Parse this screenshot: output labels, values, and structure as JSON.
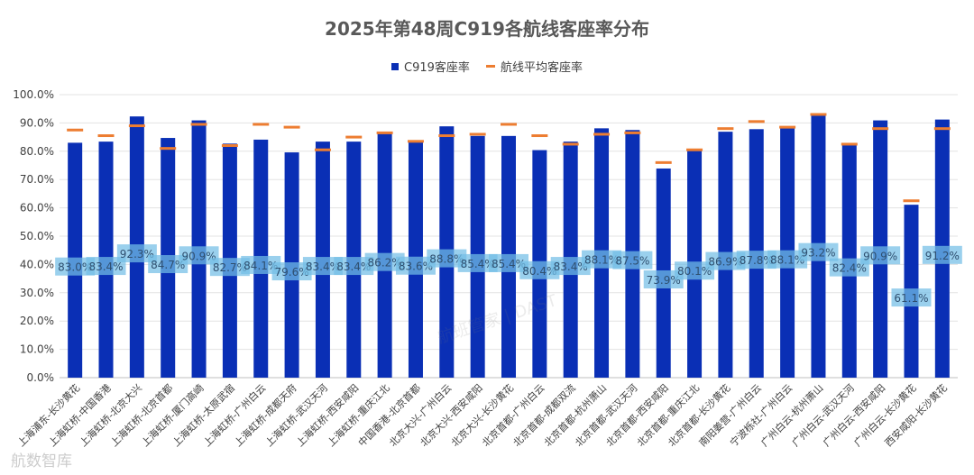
{
  "chart_data": {
    "type": "bar",
    "title": "2025年第48周C919各航线客座率分布",
    "categories": [
      "上海浦东-长沙黄花",
      "上海虹桥-中国香港",
      "上海虹桥-北京大兴",
      "上海虹桥-北京首都",
      "上海虹桥-厦门高崎",
      "上海虹桥-太原武宿",
      "上海虹桥-广州白云",
      "上海虹桥-成都天府",
      "上海虹桥-武汉天河",
      "上海虹桥-西安咸阳",
      "上海虹桥-重庆江北",
      "中国香港-北京首都",
      "北京大兴-广州白云",
      "北京大兴-西安咸阳",
      "北京大兴-长沙黄花",
      "北京首都-广州白云",
      "北京首都-成都双流",
      "北京首都-杭州萧山",
      "北京首都-武汉天河",
      "北京首都-西安咸阳",
      "北京首都-重庆江北",
      "北京首都-长沙黄花",
      "南阳姜营-广州白云",
      "宁波栎社-广州白云",
      "广州白云-杭州萧山",
      "广州白云-武汉天河",
      "广州白云-西安咸阳",
      "广州白云-长沙黄花",
      "西安咸阳-长沙黄花"
    ],
    "series": [
      {
        "name": "C919客座率",
        "type": "bar",
        "color": "#0a2fb5",
        "values": [
          83.0,
          83.4,
          92.3,
          84.7,
          90.9,
          82.7,
          84.1,
          79.6,
          83.4,
          83.4,
          86.2,
          83.6,
          88.8,
          85.4,
          85.4,
          80.4,
          83.4,
          88.1,
          87.5,
          73.9,
          80.1,
          86.9,
          87.8,
          88.1,
          93.2,
          82.4,
          90.9,
          61.1,
          91.2
        ]
      },
      {
        "name": "航线平均客座率",
        "type": "marker",
        "color": "#ed7d31",
        "values": [
          87.5,
          85.5,
          89.0,
          81.0,
          89.5,
          82.0,
          89.5,
          88.5,
          80.5,
          85.0,
          86.5,
          83.5,
          85.5,
          86.0,
          89.5,
          85.5,
          82.5,
          86.0,
          86.5,
          76.0,
          80.5,
          88.0,
          90.5,
          88.5,
          93.0,
          82.5,
          88.0,
          62.5,
          88.0
        ]
      }
    ],
    "data_labels": [
      "83.0%",
      "83.4%",
      "92.3%",
      "84.7%",
      "90.9%",
      "82.7%",
      "84.1%",
      "79.6%",
      "83.4%",
      "83.4%",
      "86.2%",
      "83.6%",
      "88.8%",
      "85.4%",
      "85.4%",
      "80.4%",
      "83.4%",
      "88.1%",
      "87.5%",
      "73.9%",
      "80.1%",
      "86.9%",
      "87.8%",
      "88.1%",
      "93.2%",
      "82.4%",
      "90.9%",
      "61.1%",
      "91.2%"
    ],
    "yticks": [
      "0.0%",
      "10.0%",
      "20.0%",
      "30.0%",
      "40.0%",
      "50.0%",
      "60.0%",
      "70.0%",
      "80.0%",
      "90.0%",
      "100.0%"
    ],
    "ylim": [
      0,
      100
    ],
    "grid": true,
    "legend": "top-center",
    "xlabel": "",
    "ylabel": ""
  },
  "watermark": "航班管家 | DAST",
  "brand": "航数智库"
}
